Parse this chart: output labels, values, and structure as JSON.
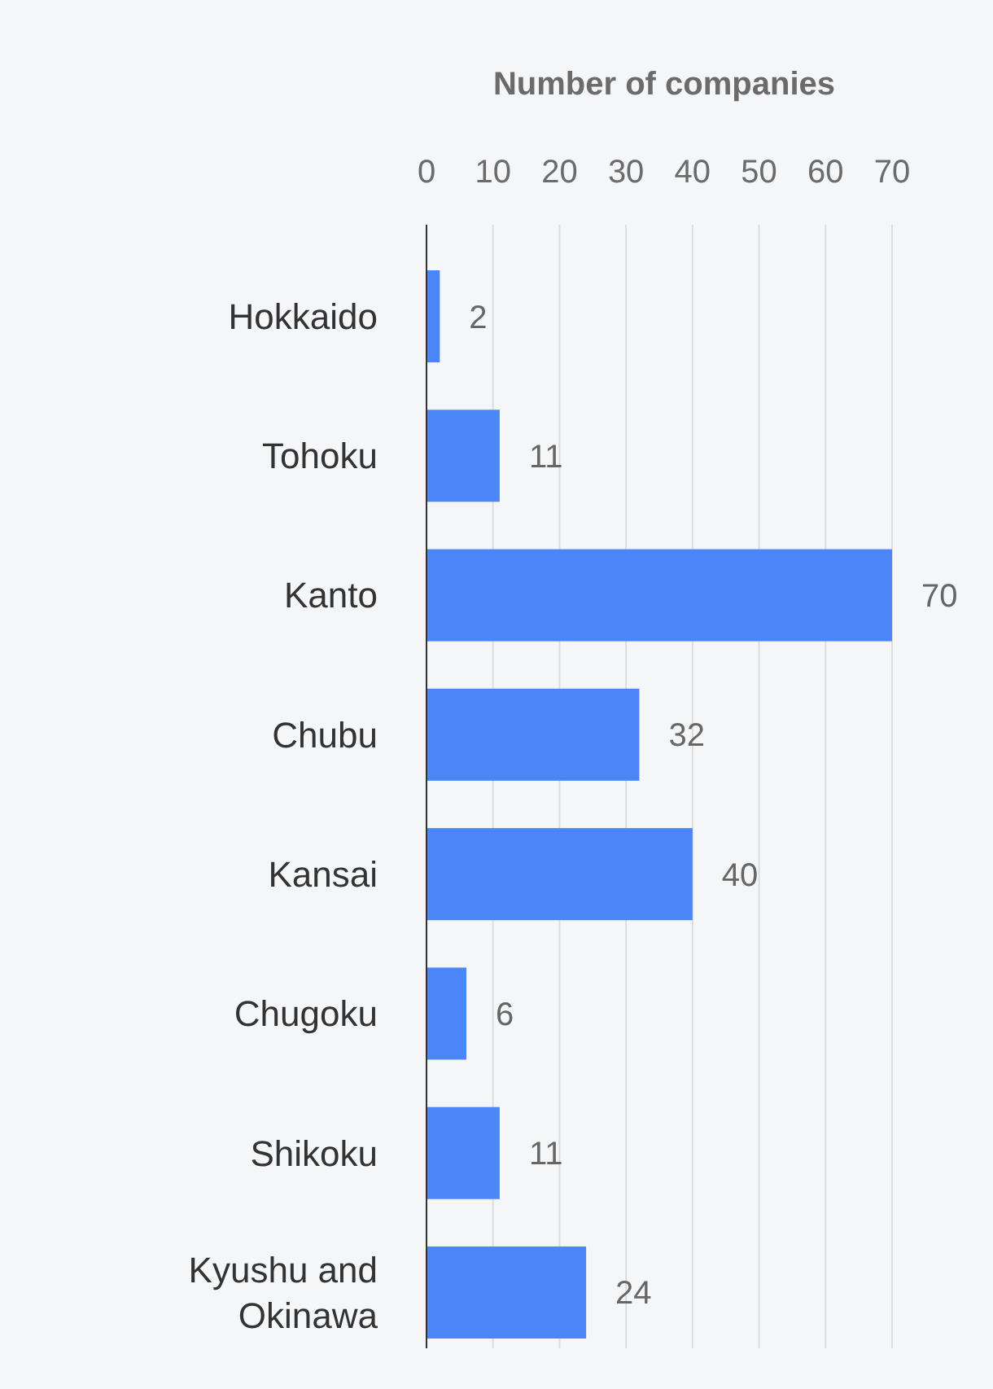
{
  "chart_data": {
    "type": "bar",
    "orientation": "horizontal",
    "xlabel": "Number of companies",
    "categories": [
      "Hokkaido",
      "Tohoku",
      "Kanto",
      "Chubu",
      "Kansai",
      "Chugoku",
      "Shikoku",
      "Kyushu and Okinawa"
    ],
    "values": [
      2,
      11,
      70,
      32,
      40,
      6,
      11,
      24
    ],
    "color": "#4a86f7",
    "xlim": [
      0,
      70
    ],
    "xticks": [
      0,
      10,
      20,
      30,
      40,
      50,
      60,
      70
    ],
    "grid": "x",
    "data_labels": true
  }
}
